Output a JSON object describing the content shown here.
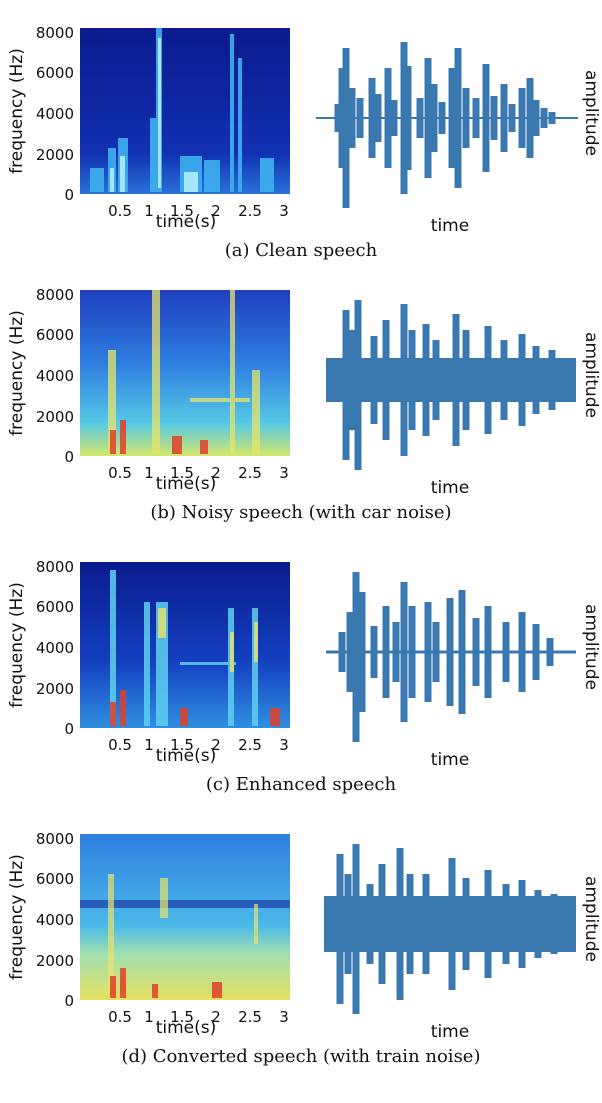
{
  "panels": [
    {
      "caption": "(a) Clean speech",
      "ylabel": "frequency (Hz)",
      "xlabel": "time(s)",
      "y_ticks": [
        "8000",
        "6000",
        "4000",
        "2000",
        "0"
      ],
      "x_ticks": [
        "0.5",
        "1",
        "1.5",
        "2",
        "2.5",
        "3"
      ],
      "wave_xlabel": "time",
      "wave_ylabel": "amplitude"
    },
    {
      "caption": "(b) Noisy speech (with car noise)",
      "ylabel": "frequency (Hz)",
      "xlabel": "time(s)",
      "y_ticks": [
        "8000",
        "6000",
        "4000",
        "2000",
        "0"
      ],
      "x_ticks": [
        "0.5",
        "1",
        "1.5",
        "2",
        "2.5",
        "3"
      ],
      "wave_xlabel": "time",
      "wave_ylabel": "amplitude"
    },
    {
      "caption": "(c) Enhanced speech",
      "ylabel": "frequency (Hz)",
      "xlabel": "time(s)",
      "y_ticks": [
        "8000",
        "6000",
        "4000",
        "2000",
        "0"
      ],
      "x_ticks": [
        "0.5",
        "1",
        "1.5",
        "2",
        "2.5",
        "3"
      ],
      "wave_xlabel": "time",
      "wave_ylabel": "amplitude"
    },
    {
      "caption": "(d) Converted speech (with train noise)",
      "ylabel": "frequency (Hz)",
      "xlabel": "time(s)",
      "y_ticks": [
        "8000",
        "6000",
        "4000",
        "2000",
        "0"
      ],
      "x_ticks": [
        "0.5",
        "1",
        "1.5",
        "2",
        "2.5",
        "3"
      ],
      "wave_xlabel": "time",
      "wave_ylabel": "amplitude"
    }
  ],
  "colors": {
    "spectrogram_background": "#0a1a8c",
    "waveform": "#3a78b0"
  }
}
